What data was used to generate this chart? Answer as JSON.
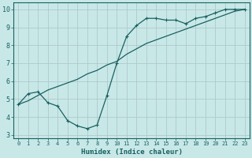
{
  "title": "",
  "xlabel": "Humidex (Indice chaleur)",
  "background_color": "#c8e8e8",
  "grid_color": "#b0c8c8",
  "line_color": "#1a6060",
  "xlim": [
    -0.5,
    23.5
  ],
  "ylim": [
    2.8,
    10.4
  ],
  "yticks": [
    3,
    4,
    5,
    6,
    7,
    8,
    9,
    10
  ],
  "xticks": [
    0,
    1,
    2,
    3,
    4,
    5,
    6,
    7,
    8,
    9,
    10,
    11,
    12,
    13,
    14,
    15,
    16,
    17,
    18,
    19,
    20,
    21,
    22,
    23
  ],
  "line1_x": [
    0,
    1,
    2,
    3,
    4,
    5,
    6,
    7,
    8,
    9,
    10,
    11,
    12,
    13,
    14,
    15,
    16,
    17,
    18,
    19,
    20,
    21,
    22,
    23
  ],
  "line1_y": [
    4.7,
    5.3,
    5.4,
    4.8,
    4.6,
    3.8,
    3.5,
    3.35,
    3.55,
    5.2,
    7.0,
    8.5,
    9.1,
    9.5,
    9.5,
    9.4,
    9.4,
    9.2,
    9.5,
    9.6,
    9.8,
    10.0,
    10.0,
    10.0
  ],
  "line2_x": [
    0,
    1,
    2,
    3,
    4,
    5,
    6,
    7,
    8,
    9,
    10,
    11,
    12,
    13,
    14,
    15,
    16,
    17,
    18,
    19,
    20,
    21,
    22,
    23
  ],
  "line2_y": [
    4.7,
    4.9,
    5.2,
    5.5,
    5.7,
    5.9,
    6.1,
    6.4,
    6.6,
    6.9,
    7.1,
    7.5,
    7.8,
    8.1,
    8.3,
    8.5,
    8.7,
    8.9,
    9.1,
    9.3,
    9.5,
    9.7,
    9.9,
    10.0
  ]
}
